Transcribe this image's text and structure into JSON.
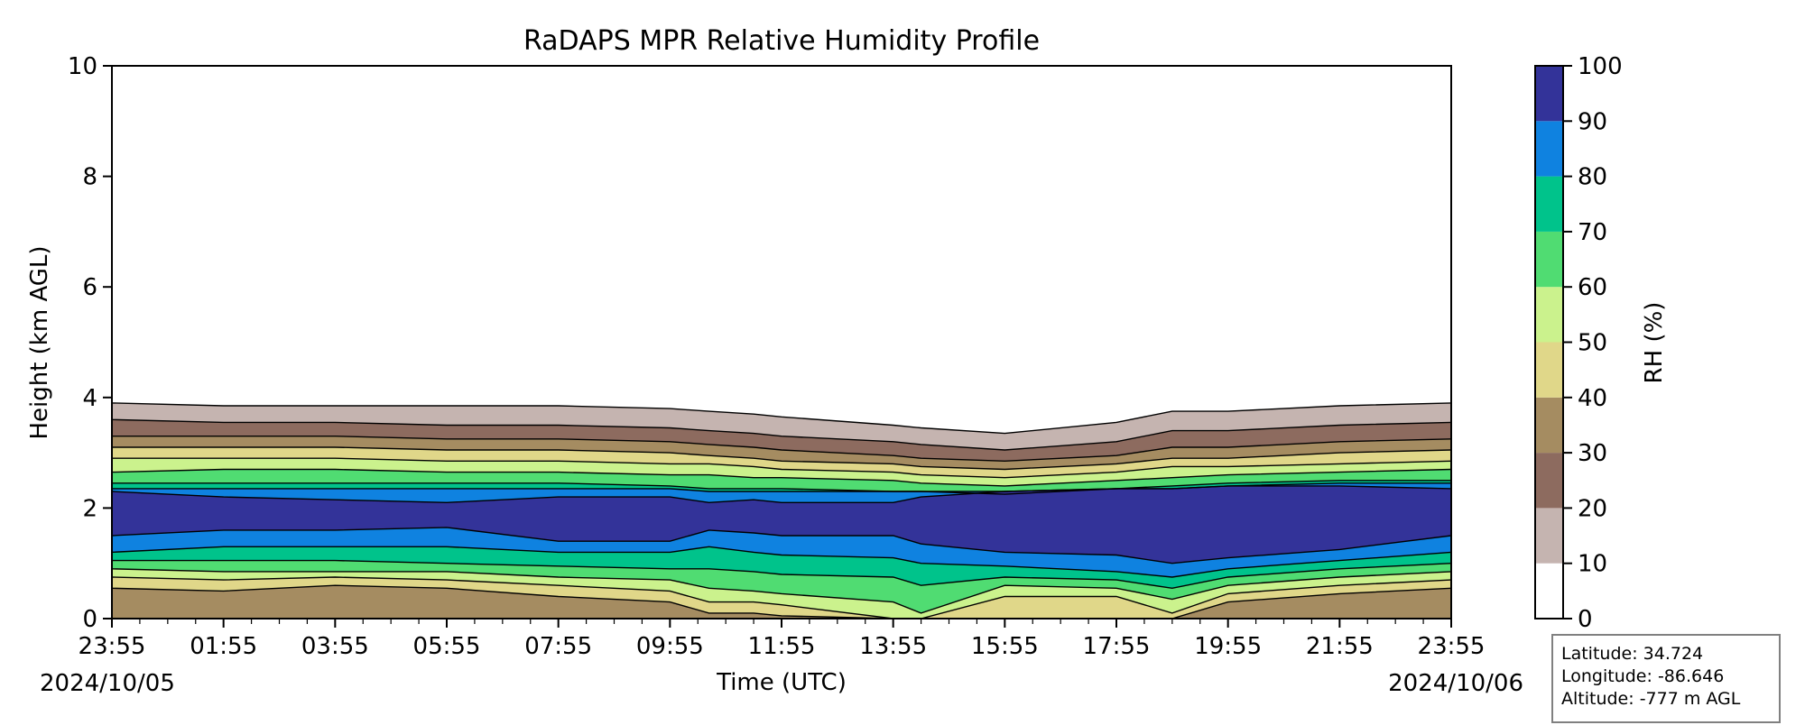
{
  "chart_data": {
    "type": "contour",
    "title": "RaDAPS MPR Relative Humidity Profile",
    "xlabel": "Time (UTC)",
    "ylabel": "Height (km AGL)",
    "ylim": [
      0,
      10
    ],
    "y_ticks": [
      "0",
      "2",
      "4",
      "6",
      "8",
      "10"
    ],
    "x_ticks": [
      "23:55",
      "01:55",
      "03:55",
      "05:55",
      "07:55",
      "09:55",
      "11:55",
      "13:55",
      "15:55",
      "17:55",
      "19:55",
      "21:55",
      "23:55"
    ],
    "date_start": "2024/10/05",
    "date_end": "2024/10/06",
    "colorbar": {
      "label": "RH (%)",
      "levels": [
        0,
        10,
        20,
        30,
        40,
        50,
        60,
        70,
        80,
        90,
        100
      ],
      "tick_labels": [
        "0",
        "10",
        "20",
        "30",
        "40",
        "50",
        "60",
        "70",
        "80",
        "90",
        "100"
      ],
      "colors": [
        "#ffffff",
        "#c5b4b0",
        "#8d6b5f",
        "#a58c61",
        "#e0d789",
        "#cbf28d",
        "#50dc72",
        "#00c38b",
        "#0f82e0",
        "#333399"
      ]
    },
    "profile_hours": [
      0,
      2,
      4,
      6,
      8,
      10,
      10.7,
      11.5,
      12,
      14,
      14.5,
      16,
      18,
      19,
      20,
      22,
      24
    ],
    "rh_contour_heights_km": {
      "10": [
        3.9,
        3.85,
        3.85,
        3.85,
        3.85,
        3.8,
        3.75,
        3.7,
        3.65,
        3.5,
        3.45,
        3.35,
        3.55,
        3.75,
        3.75,
        3.85,
        3.9
      ],
      "20": [
        3.6,
        3.55,
        3.55,
        3.5,
        3.5,
        3.45,
        3.4,
        3.35,
        3.3,
        3.2,
        3.15,
        3.05,
        3.2,
        3.4,
        3.4,
        3.5,
        3.55
      ],
      "30": [
        3.3,
        3.3,
        3.3,
        3.25,
        3.25,
        3.2,
        3.15,
        3.1,
        3.05,
        2.95,
        2.9,
        2.85,
        2.95,
        3.1,
        3.1,
        3.2,
        3.25
      ],
      "40": [
        3.1,
        3.1,
        3.1,
        3.05,
        3.05,
        3.0,
        2.95,
        2.9,
        2.85,
        2.8,
        2.75,
        2.7,
        2.8,
        2.9,
        2.9,
        3.0,
        3.05
      ],
      "50": [
        2.9,
        2.9,
        2.9,
        2.85,
        2.85,
        2.8,
        2.8,
        2.75,
        2.7,
        2.65,
        2.6,
        2.55,
        2.65,
        2.75,
        2.75,
        2.8,
        2.85
      ],
      "60": [
        2.65,
        2.7,
        2.7,
        2.65,
        2.65,
        2.6,
        2.6,
        2.55,
        2.55,
        2.5,
        2.45,
        2.4,
        2.5,
        2.55,
        2.6,
        2.65,
        2.7
      ],
      "70": [
        2.45,
        2.45,
        2.45,
        2.45,
        2.45,
        2.4,
        2.35,
        2.35,
        2.35,
        2.3,
        2.3,
        2.25,
        2.35,
        2.4,
        2.45,
        2.5,
        2.5
      ],
      "80": [
        2.35,
        2.35,
        2.35,
        2.35,
        2.35,
        2.35,
        2.3,
        2.3,
        2.3,
        2.3,
        2.3,
        2.3,
        2.35,
        2.35,
        2.4,
        2.45,
        2.45
      ],
      "90": [
        2.3,
        2.2,
        2.15,
        2.1,
        2.2,
        2.2,
        2.1,
        2.15,
        2.1,
        2.1,
        2.2,
        2.3,
        2.35,
        2.35,
        2.4,
        2.4,
        2.35
      ]
    },
    "rh_contour_low_km": {
      "90": [
        1.5,
        1.6,
        1.6,
        1.65,
        1.4,
        1.4,
        1.6,
        1.55,
        1.5,
        1.5,
        1.35,
        1.2,
        1.15,
        1.0,
        1.1,
        1.25,
        1.5
      ],
      "80": [
        1.2,
        1.3,
        1.3,
        1.3,
        1.2,
        1.2,
        1.3,
        1.2,
        1.15,
        1.1,
        1.0,
        0.95,
        0.85,
        0.75,
        0.9,
        1.05,
        1.2
      ],
      "70": [
        1.05,
        1.05,
        1.05,
        1.0,
        0.95,
        0.9,
        0.9,
        0.85,
        0.8,
        0.75,
        0.6,
        0.75,
        0.7,
        0.55,
        0.75,
        0.9,
        1.0
      ],
      "60": [
        0.9,
        0.85,
        0.85,
        0.85,
        0.75,
        0.7,
        0.55,
        0.5,
        0.45,
        0.3,
        0.1,
        0.6,
        0.55,
        0.35,
        0.6,
        0.75,
        0.85
      ],
      "50": [
        0.75,
        0.7,
        0.75,
        0.7,
        0.6,
        0.5,
        0.3,
        0.3,
        0.25,
        0.0,
        0.0,
        0.4,
        0.4,
        0.1,
        0.45,
        0.6,
        0.7
      ],
      "40": [
        0.55,
        0.5,
        0.6,
        0.55,
        0.4,
        0.3,
        0.1,
        0.1,
        0.05,
        0.0,
        0.0,
        0.0,
        0.0,
        0.0,
        0.3,
        0.45,
        0.55
      ]
    },
    "annotations": {
      "lat_label": "Latitude: 34.724",
      "lon_label": "Longitude: -86.646",
      "alt_label": "Altitude: -777 m AGL"
    }
  }
}
